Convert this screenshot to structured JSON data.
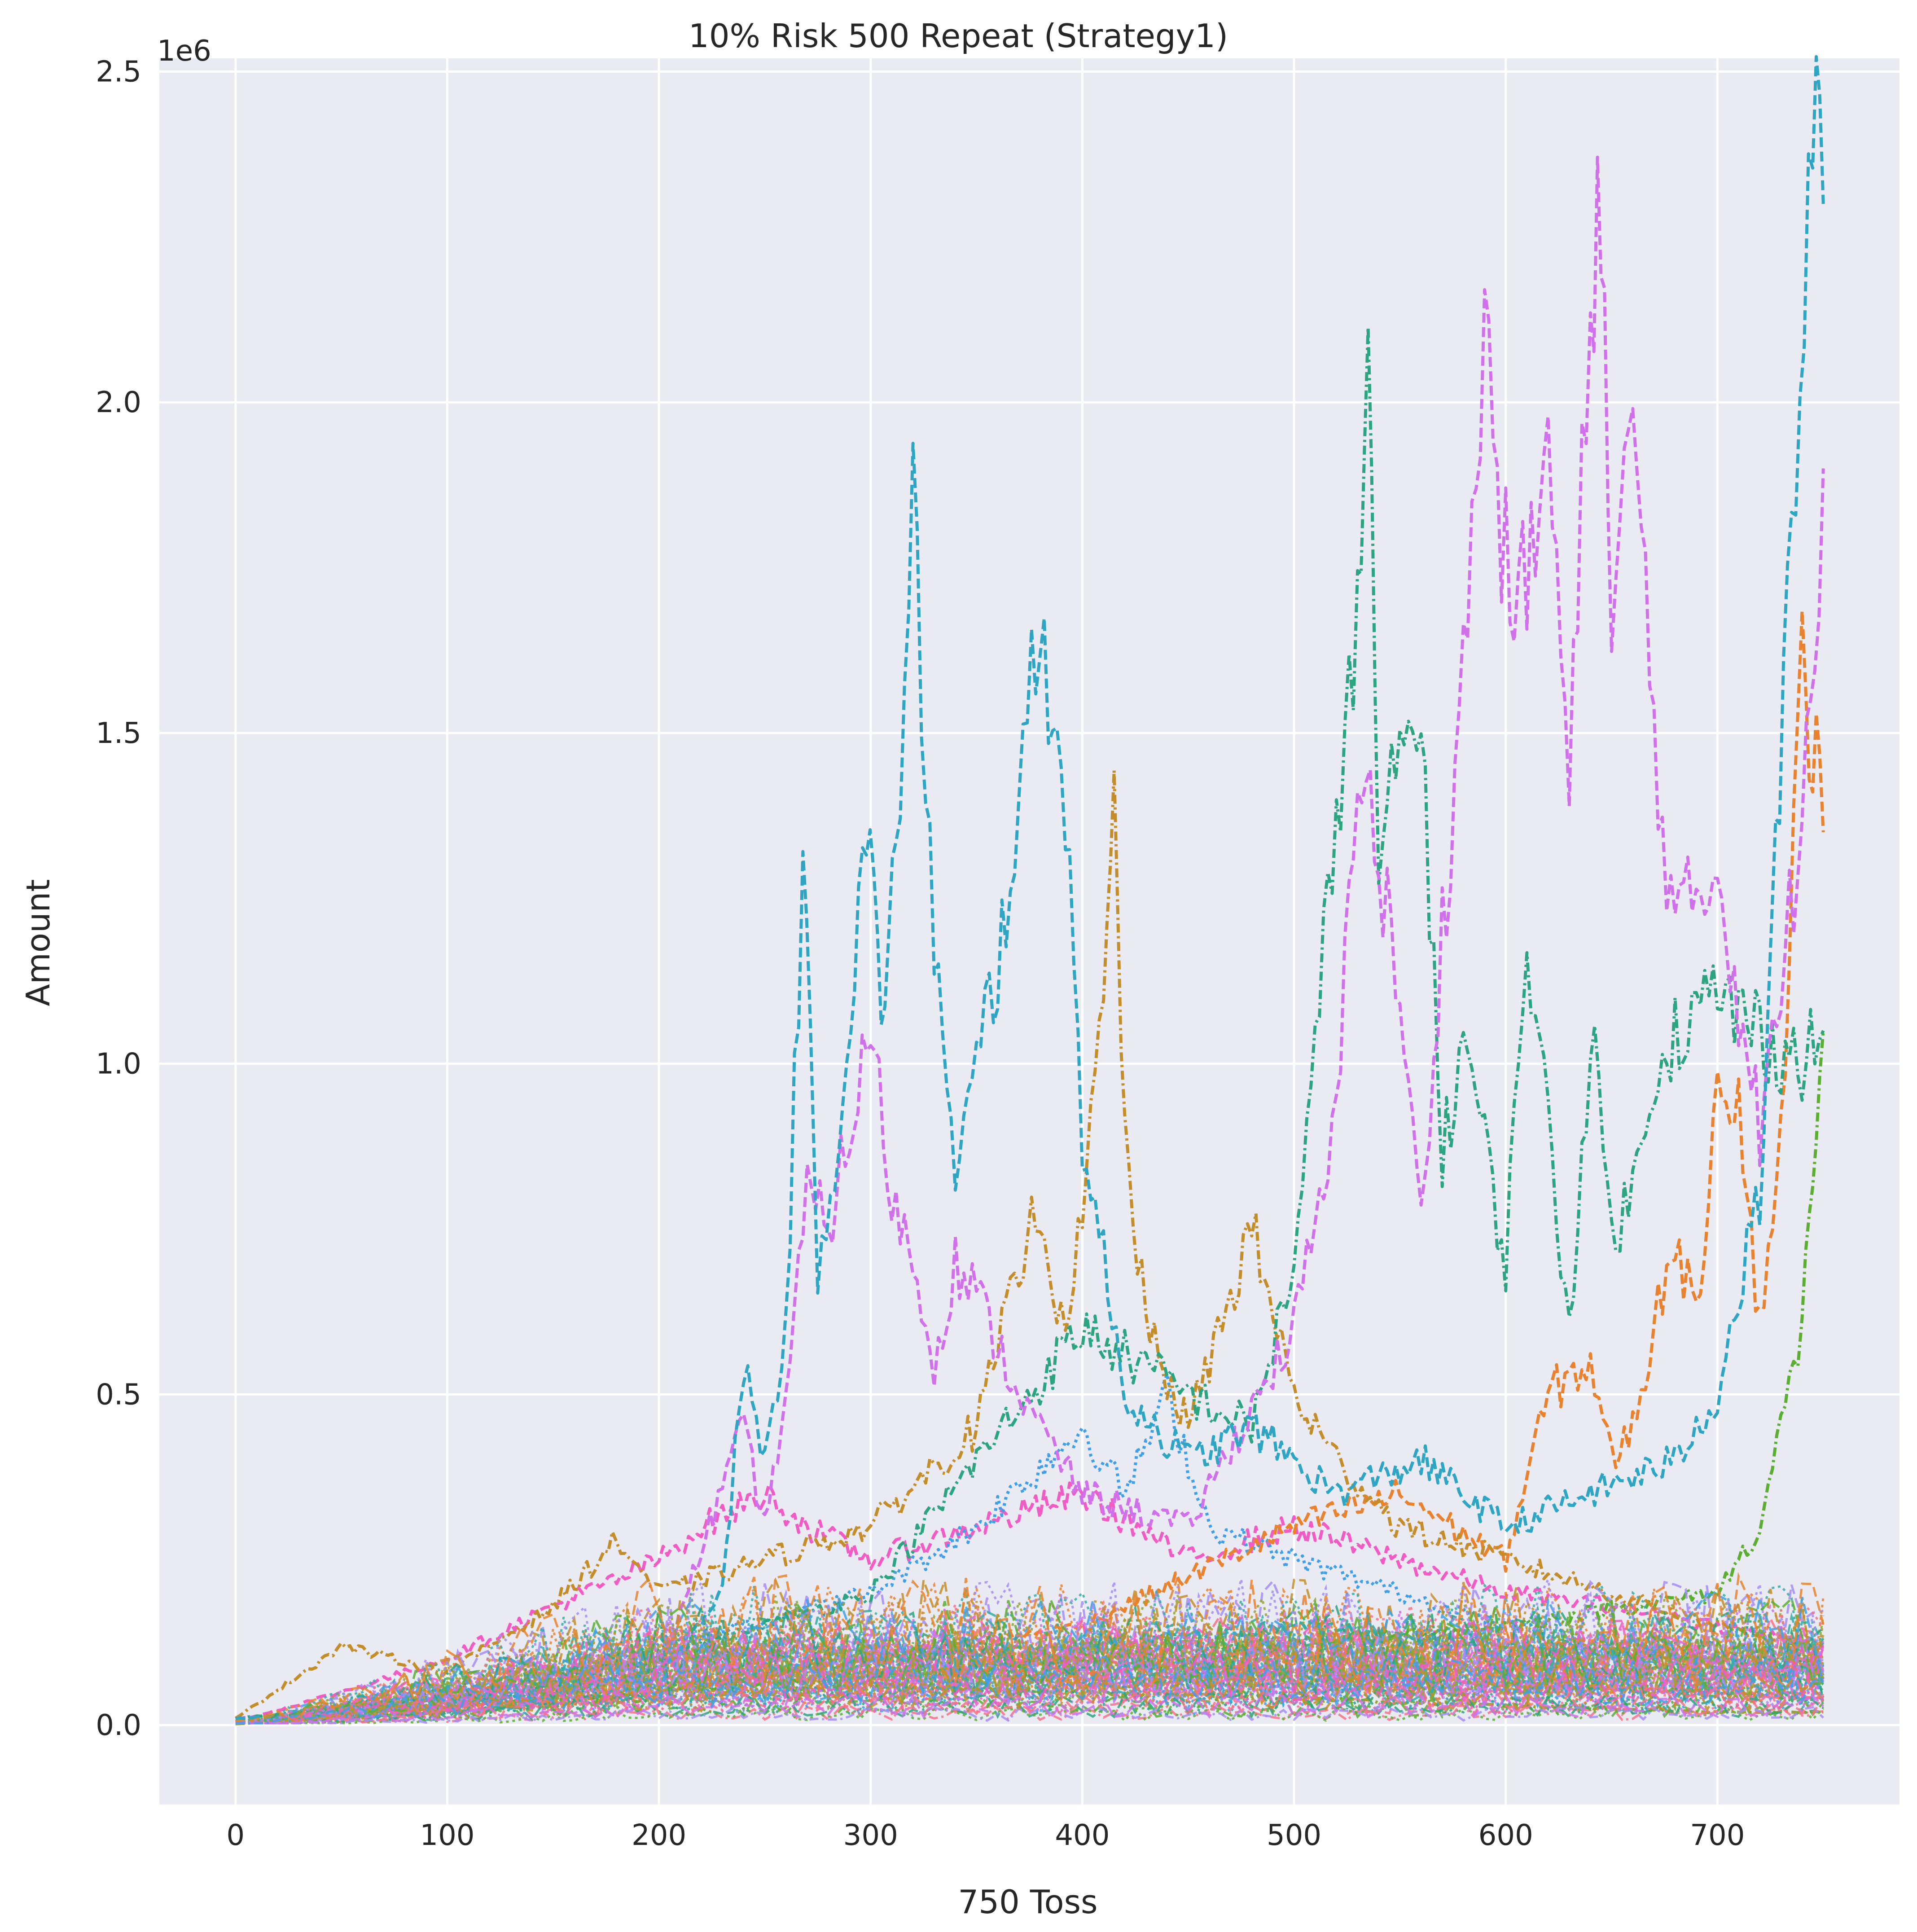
{
  "chart_data": {
    "type": "line",
    "title": "10% Risk 500 Repeat (Strategy1)",
    "xlabel": "750 Toss",
    "ylabel": "Amount",
    "y_offset_label": "1e6",
    "xlim": [
      -36,
      786
    ],
    "ylim": [
      -0.12,
      2.52
    ],
    "x_ticks": [
      0,
      100,
      200,
      300,
      400,
      500,
      600,
      700
    ],
    "x_tick_labels": [
      "0",
      "100",
      "200",
      "300",
      "400",
      "500",
      "600",
      "700"
    ],
    "y_ticks": [
      0.0,
      0.5,
      1.0,
      1.5,
      2.0,
      2.5
    ],
    "y_tick_labels": [
      "0.0",
      "0.5",
      "1.0",
      "1.5",
      "2.0",
      "2.5"
    ],
    "y_unit_multiplier": 1000000,
    "grid": true,
    "legend": "none",
    "background_color": "#EAEAF2",
    "grid_color": "#FFFFFF",
    "series_count_note": "500 repeats, many overlapping dashed lines near zero",
    "series": [
      {
        "color": "#2FA5C4",
        "dash": "dashed",
        "x": [
          0,
          50,
          100,
          150,
          200,
          230,
          240,
          250,
          260,
          268,
          275,
          285,
          298,
          305,
          312,
          320,
          330,
          340,
          350,
          360,
          370,
          380,
          390,
          400,
          420,
          450,
          480,
          520,
          560,
          600,
          640,
          680,
          700,
          720,
          735,
          745,
          750
        ],
        "y": [
          0.01,
          0.02,
          0.03,
          0.05,
          0.08,
          0.2,
          0.55,
          0.4,
          0.6,
          1.3,
          0.7,
          0.9,
          1.35,
          1.1,
          1.3,
          1.83,
          1.2,
          0.8,
          1.0,
          1.15,
          1.4,
          1.65,
          1.5,
          0.9,
          0.5,
          0.4,
          0.45,
          0.35,
          0.4,
          0.3,
          0.35,
          0.4,
          0.5,
          0.8,
          1.8,
          2.4,
          2.3
        ]
      },
      {
        "color": "#D070EA",
        "dash": "dashed",
        "x": [
          0,
          100,
          200,
          240,
          250,
          260,
          270,
          280,
          300,
          310,
          320,
          330,
          340,
          350,
          370,
          400,
          450,
          500,
          520,
          530,
          540,
          550,
          560,
          570,
          580,
          590,
          600,
          610,
          620,
          630,
          640,
          645,
          650,
          660,
          670,
          680,
          700,
          720,
          730,
          740,
          750
        ],
        "y": [
          0.01,
          0.03,
          0.08,
          0.45,
          0.3,
          0.5,
          0.8,
          0.75,
          1.05,
          0.8,
          0.7,
          0.55,
          0.7,
          0.65,
          0.5,
          0.35,
          0.3,
          0.6,
          0.9,
          1.5,
          1.3,
          1.1,
          0.75,
          1.2,
          1.6,
          2.1,
          1.75,
          1.7,
          1.95,
          1.4,
          2.15,
          2.35,
          1.6,
          2.0,
          1.5,
          1.2,
          1.3,
          0.9,
          1.1,
          1.4,
          1.9
        ]
      },
      {
        "color": "#2CA47F",
        "dash": "dashdot",
        "x": [
          0,
          100,
          200,
          300,
          400,
          450,
          480,
          500,
          510,
          520,
          530,
          535,
          540,
          550,
          560,
          570,
          580,
          600,
          610,
          620,
          630,
          640,
          650,
          660,
          670,
          680,
          700,
          720,
          740,
          750
        ],
        "y": [
          0.01,
          0.04,
          0.1,
          0.2,
          0.6,
          0.5,
          0.45,
          0.7,
          1.0,
          1.4,
          1.65,
          2.05,
          1.3,
          1.45,
          1.55,
          0.85,
          1.05,
          0.7,
          1.2,
          0.9,
          0.6,
          1.05,
          0.75,
          0.8,
          1.0,
          1.05,
          1.1,
          1.05,
          1.0,
          1.05
        ]
      },
      {
        "color": "#C38E2A",
        "dash": "dashdot",
        "x": [
          0,
          50,
          100,
          150,
          180,
          200,
          250,
          300,
          350,
          380,
          390,
          400,
          410,
          415,
          420,
          430,
          450,
          480,
          500,
          520,
          550,
          600,
          650,
          700,
          750
        ],
        "y": [
          0.01,
          0.12,
          0.08,
          0.18,
          0.28,
          0.2,
          0.25,
          0.3,
          0.45,
          0.8,
          0.6,
          0.75,
          1.1,
          1.38,
          0.9,
          0.6,
          0.45,
          0.75,
          0.5,
          0.4,
          0.3,
          0.25,
          0.2,
          0.15,
          0.12
        ]
      },
      {
        "color": "#E8822E",
        "dash": "dashed",
        "x": [
          0,
          200,
          400,
          500,
          550,
          600,
          620,
          640,
          650,
          660,
          680,
          690,
          700,
          710,
          720,
          730,
          740,
          745,
          750
        ],
        "y": [
          0.005,
          0.05,
          0.15,
          0.3,
          0.35,
          0.25,
          0.5,
          0.55,
          0.4,
          0.45,
          0.75,
          0.6,
          1.0,
          0.95,
          0.6,
          0.9,
          1.6,
          1.5,
          1.35
        ]
      },
      {
        "color": "#5BAE32",
        "dash": "dashdot",
        "x": [
          0,
          200,
          400,
          600,
          700,
          720,
          730,
          740,
          745,
          750
        ],
        "y": [
          0.005,
          0.05,
          0.1,
          0.15,
          0.2,
          0.3,
          0.45,
          0.6,
          0.85,
          1.05
        ]
      },
      {
        "color": "#3FA0E8",
        "dash": "dotted",
        "x": [
          0,
          100,
          200,
          300,
          350,
          400,
          420,
          440,
          460,
          500,
          550,
          600,
          650,
          700,
          750
        ],
        "y": [
          0.005,
          0.04,
          0.12,
          0.2,
          0.3,
          0.45,
          0.35,
          0.5,
          0.3,
          0.25,
          0.2,
          0.15,
          0.12,
          0.1,
          0.08
        ]
      },
      {
        "color": "#F05CC3",
        "dash": "dashed",
        "x": [
          0,
          50,
          100,
          150,
          180,
          200,
          220,
          250,
          270,
          300,
          350,
          400,
          450,
          500,
          550,
          600,
          650,
          700,
          750
        ],
        "y": [
          0.005,
          0.05,
          0.1,
          0.18,
          0.22,
          0.25,
          0.3,
          0.35,
          0.3,
          0.25,
          0.3,
          0.35,
          0.25,
          0.3,
          0.25,
          0.2,
          0.18,
          0.15,
          0.12
        ]
      },
      {
        "color": "#F77189",
        "dash": "dashed",
        "x": [
          0,
          100,
          200,
          300,
          400,
          500,
          600,
          700,
          750
        ],
        "y": [
          0.004,
          0.05,
          0.1,
          0.12,
          0.1,
          0.08,
          0.06,
          0.05,
          0.04
        ]
      },
      {
        "color": "#A48CF4",
        "dash": "dotted",
        "x": [
          0,
          100,
          200,
          300,
          400,
          500,
          600,
          700,
          750
        ],
        "y": [
          0.003,
          0.03,
          0.06,
          0.08,
          0.07,
          0.06,
          0.05,
          0.07,
          0.1
        ]
      },
      {
        "color": "#36ADA4",
        "dash": "dashed",
        "x": [
          0,
          100,
          200,
          300,
          400,
          500,
          600,
          700,
          750
        ],
        "y": [
          0.003,
          0.02,
          0.05,
          0.1,
          0.12,
          0.15,
          0.12,
          0.1,
          0.09
        ]
      },
      {
        "color": "#97A431",
        "dash": "dashdot",
        "x": [
          0,
          100,
          200,
          300,
          400,
          500,
          600,
          700,
          750
        ],
        "y": [
          0.002,
          0.02,
          0.04,
          0.06,
          0.05,
          0.04,
          0.03,
          0.02,
          0.02
        ]
      }
    ]
  }
}
